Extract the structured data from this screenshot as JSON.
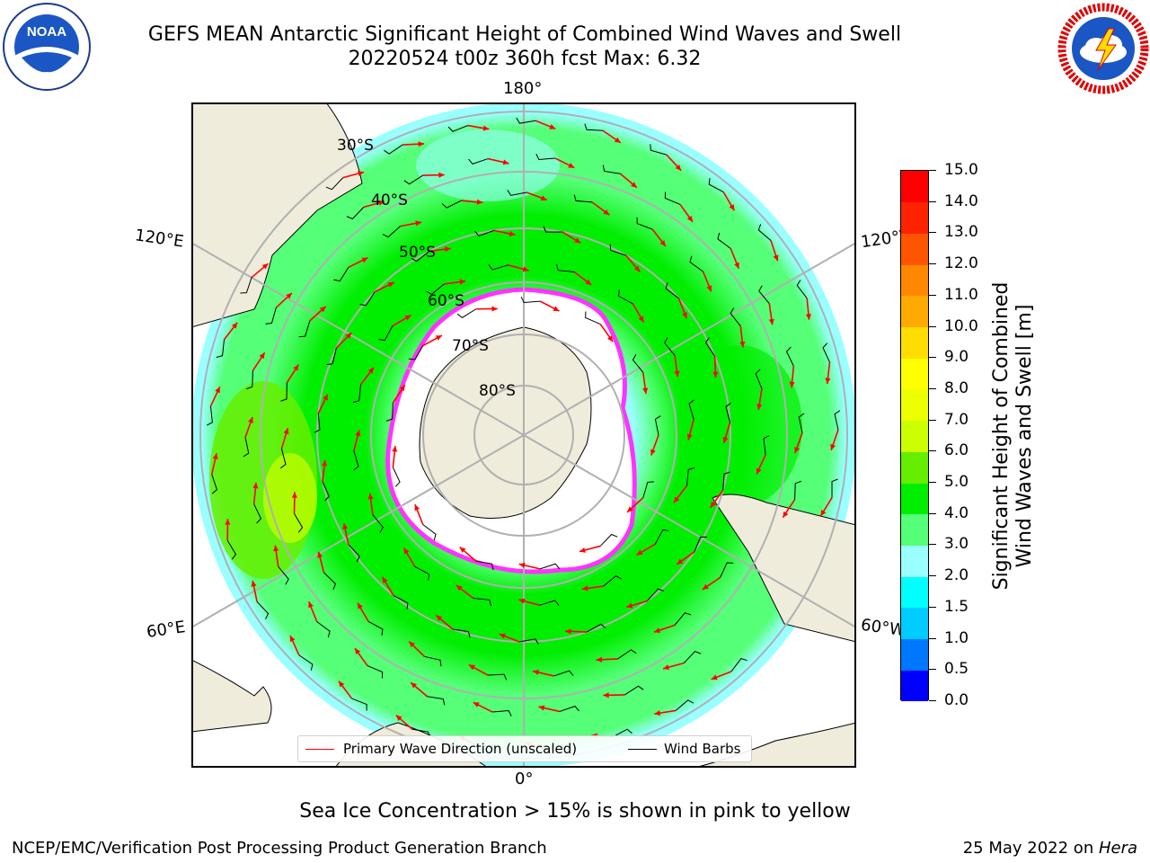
{
  "title_line1": "GEFS MEAN Antarctic Significant Height of Combined Wind Waves and Swell",
  "title_line2": "20220524 t00z 360h fcst   Max: 6.32",
  "logos": {
    "left": {
      "icon": "noaa-logo",
      "text": "NOAA",
      "ring_text": "NATIONAL OCEANIC AND ATMOSPHERIC ADMINISTRATION · U.S. DEPARTMENT OF COMMERCE"
    },
    "right": {
      "icon": "nws-logo",
      "ring_text": "NATIONAL WEATHER SERVICE"
    }
  },
  "map": {
    "projection": "south-polar-stereographic",
    "longitude_labels": [
      "180°",
      "120°E",
      "120°W",
      "60°E",
      "60°W",
      "0°"
    ],
    "latitude_labels": [
      "30°S",
      "40°S",
      "50°S",
      "60°S",
      "70°S",
      "80°S"
    ],
    "colors": {
      "land": "#efecdb",
      "sea_ice": "#ffffff",
      "sea_ice_edge": "#ff33ff",
      "graticule": "#b0b0b0",
      "wave_arrow": "#ff0000",
      "wind_barb": "#000000"
    }
  },
  "legend": {
    "primary_wave": "Primary Wave Direction (unscaled)",
    "wind_barbs": "Wind Barbs"
  },
  "colorbar": {
    "label_line1": "Significant Height of Combined",
    "label_line2": "Wind Waves and Swell [m]",
    "ticks": [
      "0.0",
      "0.5",
      "1.0",
      "1.5",
      "2.0",
      "3.0",
      "4.0",
      "5.0",
      "6.0",
      "7.0",
      "8.0",
      "9.0",
      "10.0",
      "11.0",
      "12.0",
      "13.0",
      "14.0",
      "15.0"
    ],
    "colors": [
      "#0000ff",
      "#0077ff",
      "#00ccff",
      "#00ffff",
      "#99ffff",
      "#55ff77",
      "#00ee00",
      "#66ee00",
      "#ccff00",
      "#eeff00",
      "#ffff00",
      "#ffdd00",
      "#ffaa00",
      "#ff8800",
      "#ff5500",
      "#ff2200",
      "#ff0000"
    ]
  },
  "subtitle": "Sea Ice Concentration > 15% is shown in pink to yellow",
  "footer_left": "NCEP/EMC/Verification Post Processing Product Generation Branch",
  "footer_right_date": "25 May 2022 on ",
  "footer_right_host": "Hera"
}
